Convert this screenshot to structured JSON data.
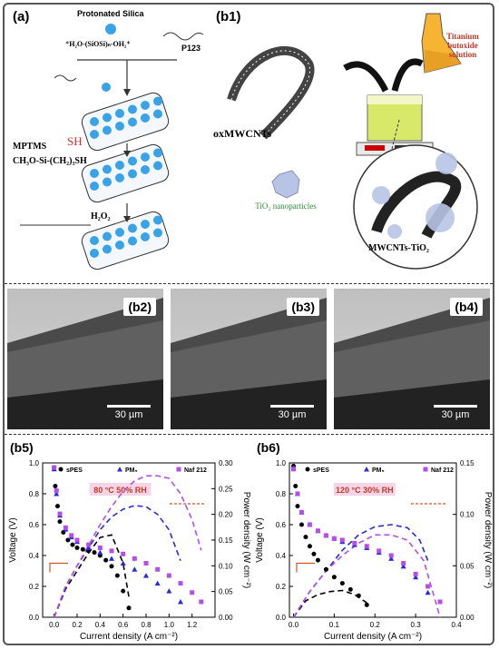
{
  "panel_a": {
    "label": "(a)",
    "protonated_silica": "Protonated Silica",
    "silica_formula": "⁺H₂O-(SiOSi)ₙ-OH₂⁺",
    "p123": "P123",
    "mptms": "MPTMS",
    "sh": "SH",
    "mptms_formula": "CH₃O-Si-(CH₂)₃SH",
    "h2o2": "H₂O₂"
  },
  "panel_b1": {
    "label": "(b1)",
    "oxmwcnts": "oxMWCNTs",
    "titanium": "Titanium butoxide solution",
    "tio2": "TiO₂ nanoparticles",
    "composite": "MWCNTs-TiO₂"
  },
  "sem": [
    {
      "label": "(b2)",
      "scale": "30 µm"
    },
    {
      "label": "(b3)",
      "scale": "30 µm"
    },
    {
      "label": "(b4)",
      "scale": "30 µm"
    }
  ],
  "colors": {
    "spes": "#000000",
    "pm": "#2b2bd6",
    "naf": "#b44ee8",
    "annot_bg": "#f6d6e6",
    "annot_text": "#c0392b",
    "arrow": "#d0562a"
  },
  "chart_data": [
    {
      "type": "line",
      "panel_label": "(b5)",
      "annotation": "80 °C 50% RH",
      "xlabel": "Current density (A cm⁻²)",
      "ylabel": "Voltage (V)",
      "y2label": "Power density (W cm⁻²)",
      "xlim": [
        -0.1,
        1.4
      ],
      "ylim": [
        0,
        1.0
      ],
      "y2lim": [
        0,
        0.3
      ],
      "xticks": [
        0.0,
        0.2,
        0.4,
        0.6,
        0.8,
        1.0,
        1.2
      ],
      "xtick_labels": [
        "0.0",
        "0.2",
        "0.4",
        "0.6",
        "0.8",
        "1.0",
        "1.2"
      ],
      "yticks": [
        0.0,
        0.2,
        0.4,
        0.6,
        0.8,
        1.0
      ],
      "ytick_labels": [
        "0.0",
        "0.2",
        "0.4",
        "0.6",
        "0.8",
        "1.0"
      ],
      "y2ticks": [
        0.0,
        0.05,
        0.1,
        0.15,
        0.2,
        0.25,
        0.3
      ],
      "y2tick_labels": [
        "0.00",
        "0.05",
        "0.10",
        "0.15",
        "0.20",
        "0.25",
        "0.30"
      ],
      "legend": [
        "sPES",
        "PM₅",
        "Naf 212"
      ],
      "series": [
        {
          "name": "sPES",
          "marker": "circle",
          "color": "#000000",
          "x": [
            0.0,
            0.01,
            0.03,
            0.05,
            0.08,
            0.12,
            0.16,
            0.2,
            0.25,
            0.3,
            0.35,
            0.4,
            0.45,
            0.5,
            0.55,
            0.6,
            0.65
          ],
          "y": [
            0.97,
            0.85,
            0.72,
            0.62,
            0.55,
            0.5,
            0.47,
            0.45,
            0.44,
            0.43,
            0.42,
            0.4,
            0.37,
            0.33,
            0.27,
            0.17,
            0.06
          ]
        },
        {
          "name": "PM₅",
          "marker": "triangle",
          "color": "#2b2bd6",
          "x": [
            0.0,
            0.02,
            0.05,
            0.1,
            0.15,
            0.2,
            0.3,
            0.4,
            0.5,
            0.6,
            0.7,
            0.8,
            0.9,
            1.0,
            1.1
          ],
          "y": [
            0.96,
            0.8,
            0.66,
            0.57,
            0.52,
            0.49,
            0.45,
            0.42,
            0.38,
            0.35,
            0.31,
            0.27,
            0.22,
            0.17,
            0.1
          ]
        },
        {
          "name": "Naf 212",
          "marker": "square",
          "color": "#b44ee8",
          "x": [
            0.0,
            0.02,
            0.05,
            0.1,
            0.15,
            0.2,
            0.3,
            0.4,
            0.5,
            0.6,
            0.7,
            0.8,
            0.9,
            1.0,
            1.1,
            1.2,
            1.28
          ],
          "y": [
            0.97,
            0.82,
            0.67,
            0.58,
            0.53,
            0.5,
            0.47,
            0.45,
            0.43,
            0.41,
            0.38,
            0.35,
            0.31,
            0.27,
            0.22,
            0.16,
            0.1
          ]
        }
      ],
      "power_series": [
        {
          "name": "sPES",
          "color": "#000000",
          "x": [
            0.0,
            0.1,
            0.2,
            0.3,
            0.4,
            0.5,
            0.6,
            0.65
          ],
          "y": [
            0.0,
            0.055,
            0.09,
            0.125,
            0.155,
            0.16,
            0.105,
            0.04
          ]
        },
        {
          "name": "PM₅",
          "color": "#2b2bd6",
          "x": [
            0.0,
            0.1,
            0.2,
            0.3,
            0.4,
            0.5,
            0.6,
            0.7,
            0.8,
            0.9,
            1.0,
            1.1
          ],
          "y": [
            0.0,
            0.06,
            0.1,
            0.135,
            0.17,
            0.195,
            0.21,
            0.217,
            0.215,
            0.2,
            0.17,
            0.11
          ]
        },
        {
          "name": "Naf 212",
          "color": "#b44ee8",
          "x": [
            0.0,
            0.1,
            0.2,
            0.3,
            0.4,
            0.5,
            0.6,
            0.7,
            0.8,
            0.9,
            1.0,
            1.1,
            1.2,
            1.28
          ],
          "y": [
            0.0,
            0.06,
            0.1,
            0.14,
            0.18,
            0.215,
            0.245,
            0.265,
            0.275,
            0.275,
            0.27,
            0.24,
            0.19,
            0.13
          ]
        }
      ]
    },
    {
      "type": "line",
      "panel_label": "(b6)",
      "annotation": "120 °C 30% RH",
      "xlabel": "Current density (A cm⁻²)",
      "ylabel": "Voltage (V)",
      "y2label": "Power density (W cm⁻²)",
      "xlim": [
        -0.01,
        0.4
      ],
      "ylim": [
        0,
        1.0
      ],
      "y2lim": [
        0,
        0.15
      ],
      "xticks": [
        0.0,
        0.1,
        0.2,
        0.3,
        0.4
      ],
      "xtick_labels": [
        "0.0",
        "0.1",
        "0.2",
        "0.3",
        "0.4"
      ],
      "yticks": [
        0.0,
        0.2,
        0.4,
        0.6,
        0.8,
        1.0
      ],
      "ytick_labels": [
        "0.0",
        "0.2",
        "0.4",
        "0.6",
        "0.8",
        "1.0"
      ],
      "y2ticks": [
        0.0,
        0.05,
        0.1,
        0.15
      ],
      "y2tick_labels": [
        "0.00",
        "0.05",
        "0.10",
        "0.15"
      ],
      "legend": [
        "sPES",
        "PM₅",
        "Naf 212"
      ],
      "series": [
        {
          "name": "sPES",
          "marker": "circle",
          "color": "#000000",
          "x": [
            0.0,
            0.005,
            0.01,
            0.02,
            0.03,
            0.04,
            0.05,
            0.06,
            0.08,
            0.1,
            0.12,
            0.14,
            0.16,
            0.18
          ],
          "y": [
            0.98,
            0.85,
            0.72,
            0.6,
            0.52,
            0.46,
            0.41,
            0.37,
            0.31,
            0.26,
            0.22,
            0.18,
            0.14,
            0.08
          ]
        },
        {
          "name": "PM₅",
          "marker": "triangle",
          "color": "#2b2bd6",
          "x": [
            0.0,
            0.01,
            0.02,
            0.04,
            0.06,
            0.08,
            0.1,
            0.12,
            0.15,
            0.18,
            0.21,
            0.24,
            0.27,
            0.3,
            0.33
          ],
          "y": [
            0.97,
            0.8,
            0.68,
            0.6,
            0.56,
            0.53,
            0.51,
            0.49,
            0.47,
            0.45,
            0.42,
            0.38,
            0.33,
            0.26,
            0.16
          ]
        },
        {
          "name": "Naf 212",
          "marker": "square",
          "color": "#b44ee8",
          "x": [
            0.0,
            0.01,
            0.02,
            0.04,
            0.06,
            0.08,
            0.1,
            0.12,
            0.15,
            0.18,
            0.21,
            0.24,
            0.27,
            0.3,
            0.33,
            0.36
          ],
          "y": [
            0.96,
            0.8,
            0.68,
            0.6,
            0.56,
            0.53,
            0.51,
            0.5,
            0.48,
            0.46,
            0.43,
            0.4,
            0.35,
            0.28,
            0.2,
            0.1
          ]
        }
      ],
      "power_series": [
        {
          "name": "sPES",
          "color": "#000000",
          "x": [
            0.0,
            0.03,
            0.06,
            0.09,
            0.12,
            0.15,
            0.18
          ],
          "y": [
            0.0,
            0.016,
            0.022,
            0.025,
            0.026,
            0.022,
            0.014
          ]
        },
        {
          "name": "PM₅",
          "color": "#2b2bd6",
          "x": [
            0.0,
            0.04,
            0.08,
            0.12,
            0.16,
            0.2,
            0.24,
            0.28,
            0.31,
            0.33
          ],
          "y": [
            0.0,
            0.025,
            0.045,
            0.065,
            0.08,
            0.088,
            0.09,
            0.087,
            0.075,
            0.055
          ]
        },
        {
          "name": "Naf 212",
          "color": "#b44ee8",
          "x": [
            0.0,
            0.04,
            0.08,
            0.12,
            0.16,
            0.2,
            0.24,
            0.28,
            0.32,
            0.36
          ],
          "y": [
            0.0,
            0.025,
            0.045,
            0.06,
            0.072,
            0.08,
            0.08,
            0.075,
            0.055,
            0.0
          ]
        }
      ]
    }
  ]
}
